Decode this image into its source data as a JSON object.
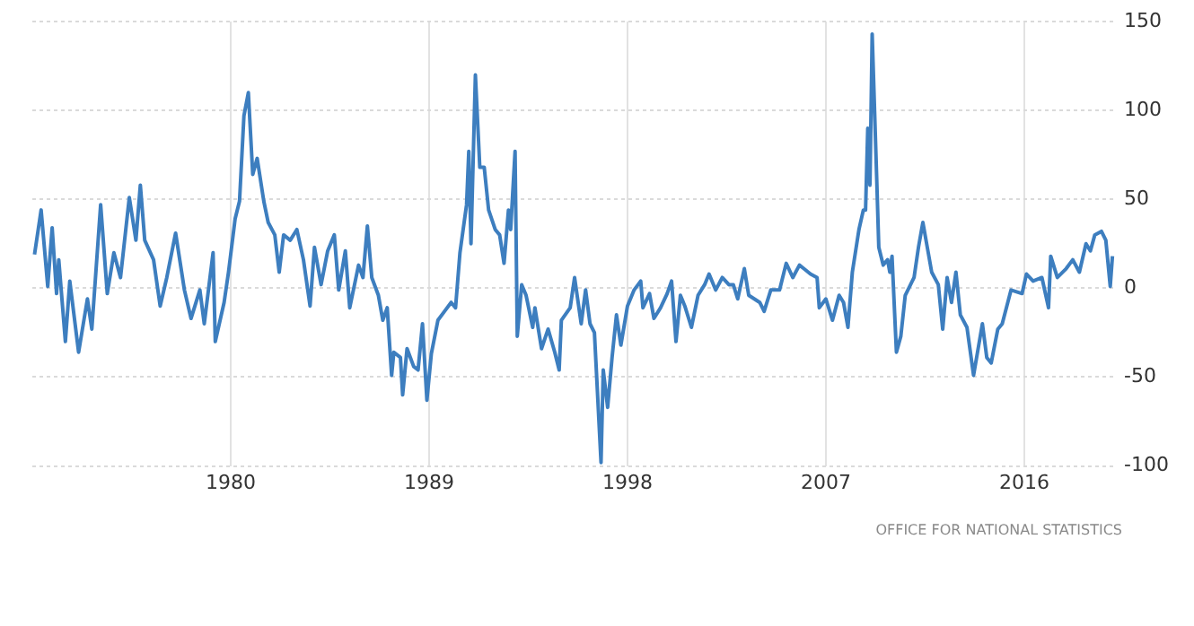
{
  "chart_data": {
    "type": "line",
    "color": "#3d7ebf",
    "marker": "none",
    "grid": true,
    "x": [
      1971.1,
      1971.4,
      1971.7,
      1971.9,
      1972.1,
      1972.2,
      1972.5,
      1972.7,
      1973.1,
      1973.5,
      1973.7,
      1974.1,
      1974.4,
      1974.7,
      1975.0,
      1975.4,
      1975.7,
      1975.9,
      1976.1,
      1976.5,
      1976.8,
      1977.1,
      1977.5,
      1977.9,
      1978.2,
      1978.6,
      1978.8,
      1979.2,
      1979.3,
      1979.7,
      1979.9,
      1980.2,
      1980.4,
      1980.6,
      1980.8,
      1981.0,
      1981.2,
      1981.5,
      1981.7,
      1982.0,
      1982.2,
      1982.4,
      1982.7,
      1983.0,
      1983.3,
      1983.6,
      1983.8,
      1984.1,
      1984.4,
      1984.7,
      1984.9,
      1985.2,
      1985.4,
      1985.8,
      1986.0,
      1986.2,
      1986.4,
      1986.7,
      1986.9,
      1987.1,
      1987.3,
      1987.4,
      1987.7,
      1987.8,
      1988.0,
      1988.3,
      1988.5,
      1988.7,
      1988.9,
      1989.1,
      1989.4,
      1989.7,
      1990.0,
      1990.2,
      1990.4,
      1990.7,
      1990.8,
      1990.9,
      1991.1,
      1991.3,
      1991.5,
      1991.7,
      1992.0,
      1992.2,
      1992.4,
      1992.6,
      1992.7,
      1992.9,
      1993.0,
      1993.2,
      1993.4,
      1993.7,
      1993.8,
      1994.1,
      1994.4,
      1994.7,
      1994.9,
      1995.0,
      1995.4,
      1995.6,
      1995.9,
      1996.1,
      1996.3,
      1996.5,
      1996.8,
      1996.9,
      1997.1,
      1997.3,
      1997.5,
      1997.7,
      1998.0,
      1998.3,
      1998.6,
      1998.7,
      1999.0,
      1999.2,
      1999.5,
      1999.8,
      2000.0,
      2000.2,
      2000.4,
      2000.6,
      2000.9,
      2001.2,
      2001.5,
      2001.7,
      2002.0,
      2002.3,
      2002.6,
      2002.8,
      2003.0,
      2003.3,
      2003.5,
      2004.0,
      2004.2,
      2004.5,
      2004.9,
      2005.2,
      2005.5,
      2005.8,
      2006.0,
      2006.3,
      2006.6,
      2006.7,
      2007.0,
      2007.3,
      2007.6,
      2007.8,
      2008.0,
      2008.2,
      2008.5,
      2008.7,
      2008.8,
      2008.9,
      2009.0,
      2009.1,
      2009.3,
      2009.4,
      2009.6,
      2009.8,
      2009.9,
      2010.0,
      2010.2,
      2010.4,
      2010.6,
      2010.8,
      2011.0,
      2011.2,
      2011.4,
      2011.6,
      2011.8,
      2012.1,
      2012.3,
      2012.5,
      2012.7,
      2012.9,
      2013.1,
      2013.4,
      2013.7,
      2014.1,
      2014.3,
      2014.5,
      2014.8,
      2015.0,
      2015.4,
      2015.9,
      2016.1,
      2016.4,
      2016.8,
      2017.1,
      2017.2,
      2017.5,
      2017.9,
      2018.2,
      2018.5,
      2018.8,
      2019.0,
      2019.2,
      2019.5,
      2019.7,
      2019.9,
      2020.0
    ],
    "values": [
      19,
      44,
      1,
      34,
      -3,
      16,
      -30,
      4,
      -36,
      -6,
      -23,
      47,
      -3,
      20,
      6,
      51,
      27,
      58,
      27,
      16,
      -10,
      6,
      31,
      -1,
      -17,
      -1,
      -20,
      20,
      -30,
      -8,
      9,
      39,
      49,
      97,
      110,
      64,
      73,
      49,
      37,
      30,
      9,
      30,
      27,
      33,
      16,
      -10,
      23,
      2,
      21,
      30,
      -1,
      21,
      -11,
      13,
      6,
      35,
      6,
      -4,
      -18,
      -11,
      -49,
      -36,
      -39,
      -60,
      -34,
      -44,
      -46,
      -20,
      -63,
      -37,
      -18,
      -13,
      -8,
      -11,
      20,
      47,
      77,
      25,
      120,
      68,
      68,
      44,
      33,
      30,
      14,
      44,
      33,
      77,
      -27,
      2,
      -4,
      -22,
      -11,
      -34,
      -23,
      -36,
      -46,
      -18,
      -11,
      6,
      -20,
      -1,
      -20,
      -25,
      -98,
      -46,
      -67,
      -39,
      -15,
      -32,
      -10,
      -1,
      4,
      -11,
      -3,
      -17,
      -11,
      -3,
      4,
      -30,
      -4,
      -10,
      -22,
      -4,
      2,
      8,
      -1,
      6,
      2,
      2,
      -6,
      11,
      -4,
      -8,
      -13,
      -1,
      -1,
      14,
      6,
      13,
      11,
      8,
      6,
      -11,
      -6,
      -18,
      -4,
      -8,
      -22,
      9,
      33,
      44,
      44,
      90,
      58,
      143,
      64,
      23,
      13,
      16,
      9,
      18,
      -36,
      -27,
      -4,
      1,
      6,
      23,
      37,
      23,
      9,
      2,
      -23,
      6,
      -8,
      9,
      -15,
      -22,
      -49,
      -20,
      -39,
      -42,
      -23,
      -20,
      -1,
      -3,
      8,
      4,
      6,
      -11,
      18,
      6,
      11,
      16,
      9,
      25,
      21,
      30,
      32,
      27,
      1,
      18
    ],
    "xlim": [
      1971,
      2020.2
    ],
    "xticks": [
      1980,
      1989,
      1998,
      2007,
      2016
    ],
    "ylim": [
      -100,
      150
    ],
    "yticks": [
      -100,
      -50,
      0,
      50,
      100,
      150
    ],
    "annotations": [
      "OFFICE FOR NATIONAL STATISTICS"
    ]
  }
}
